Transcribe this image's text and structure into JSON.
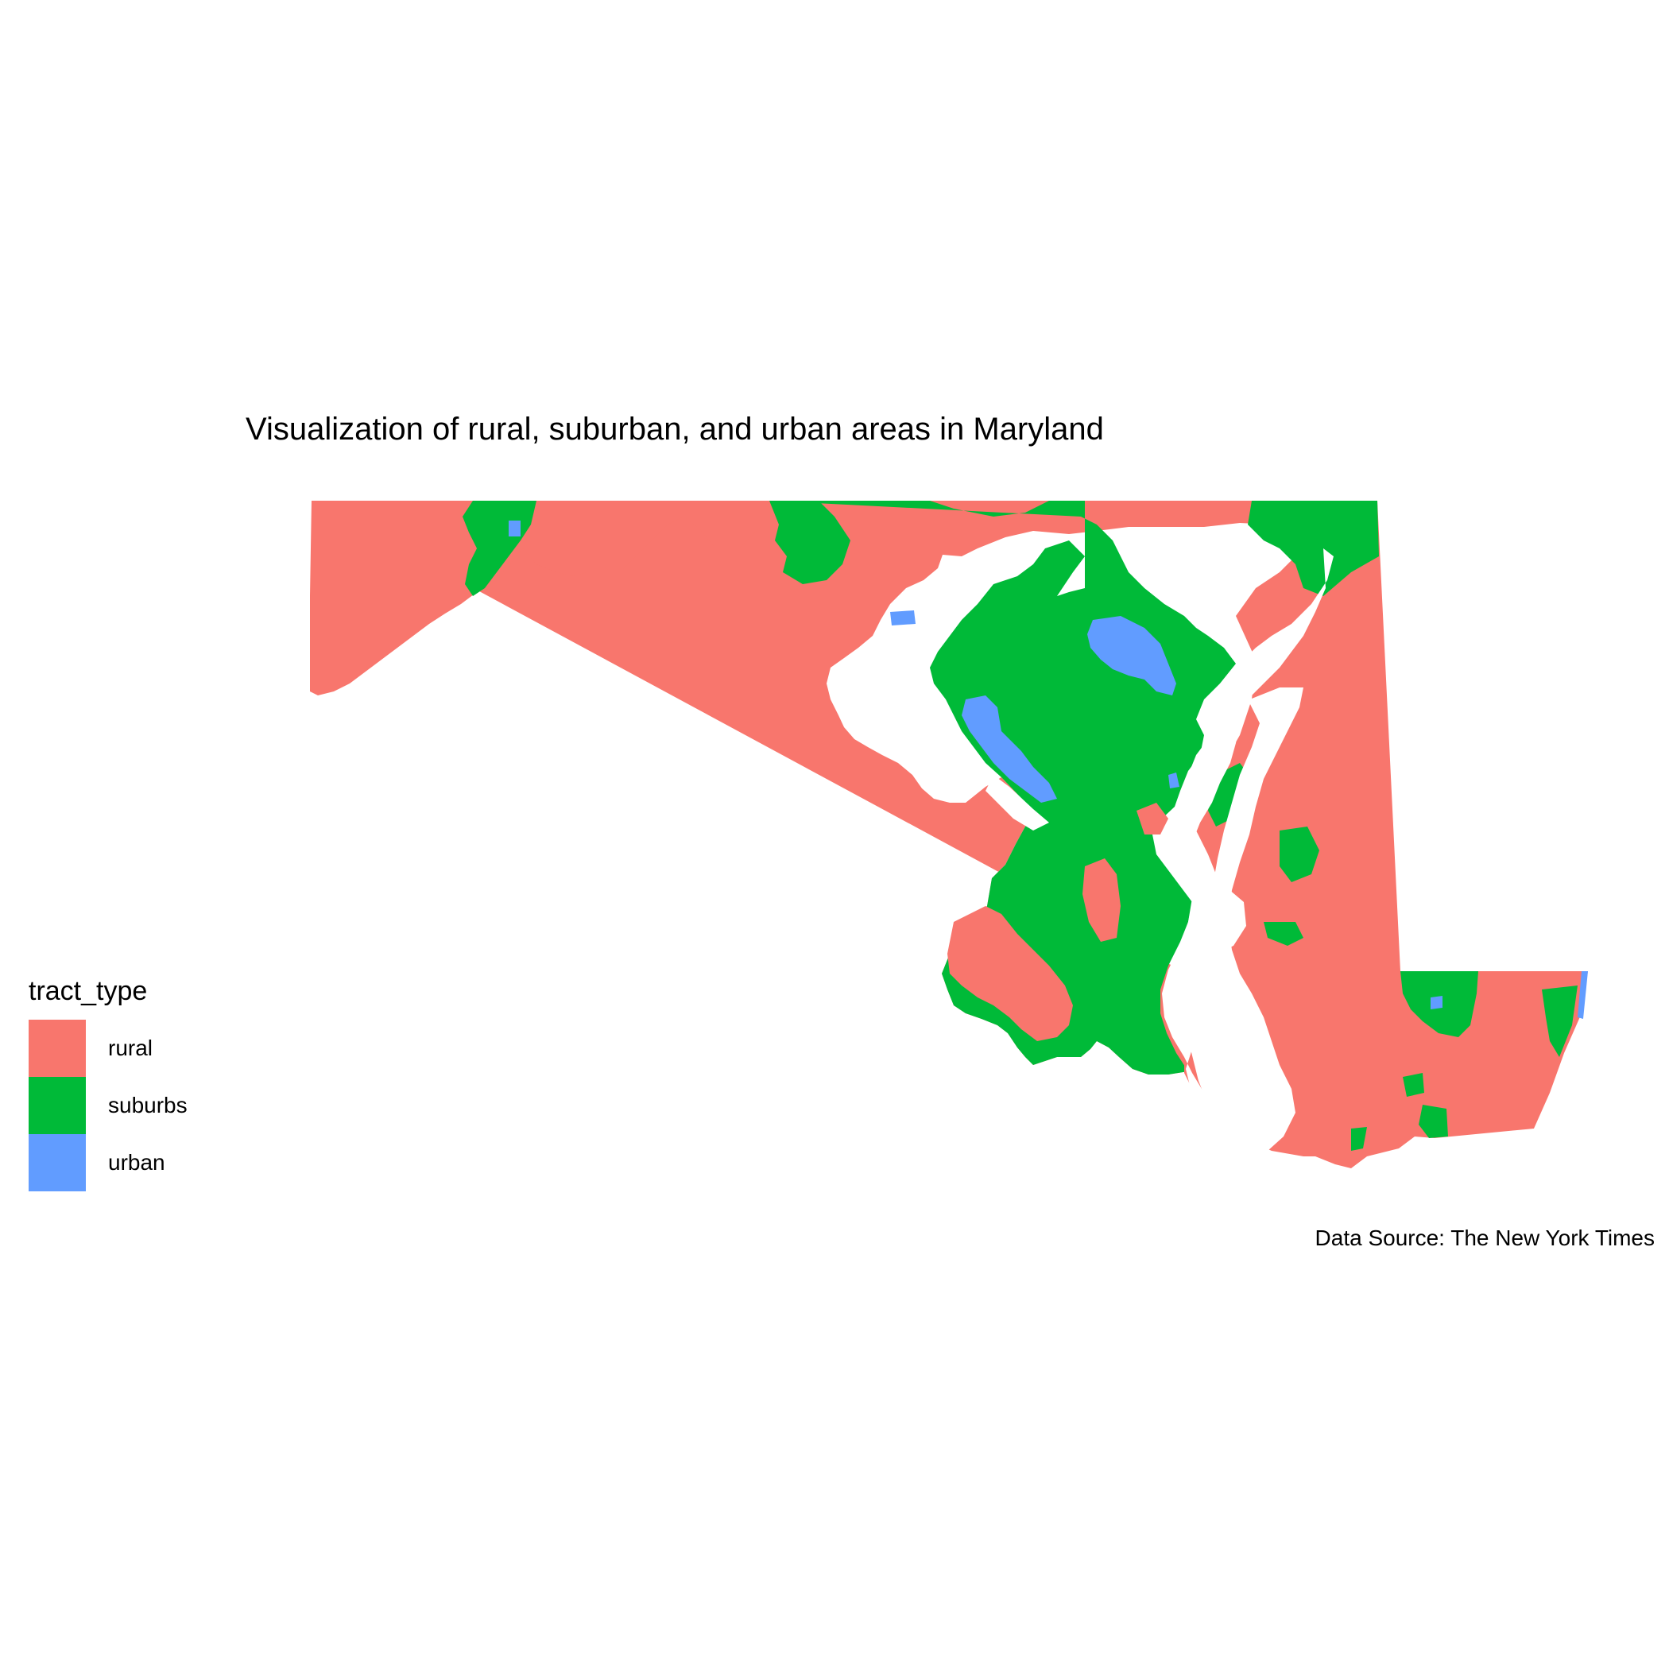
{
  "title": "Visualization of rural, suburban, and urban areas in Maryland",
  "caption": "Data Source: The New York Times",
  "legend": {
    "title": "tract_type",
    "items": [
      {
        "label": "rural",
        "color": "#F8766D"
      },
      {
        "label": "suburbs",
        "color": "#00BA38"
      },
      {
        "label": "urban",
        "color": "#619CFF"
      }
    ]
  },
  "colors": {
    "rural": "#F8766D",
    "suburbs": "#00BA38",
    "urban": "#619CFF",
    "water": "#ffffff"
  }
}
